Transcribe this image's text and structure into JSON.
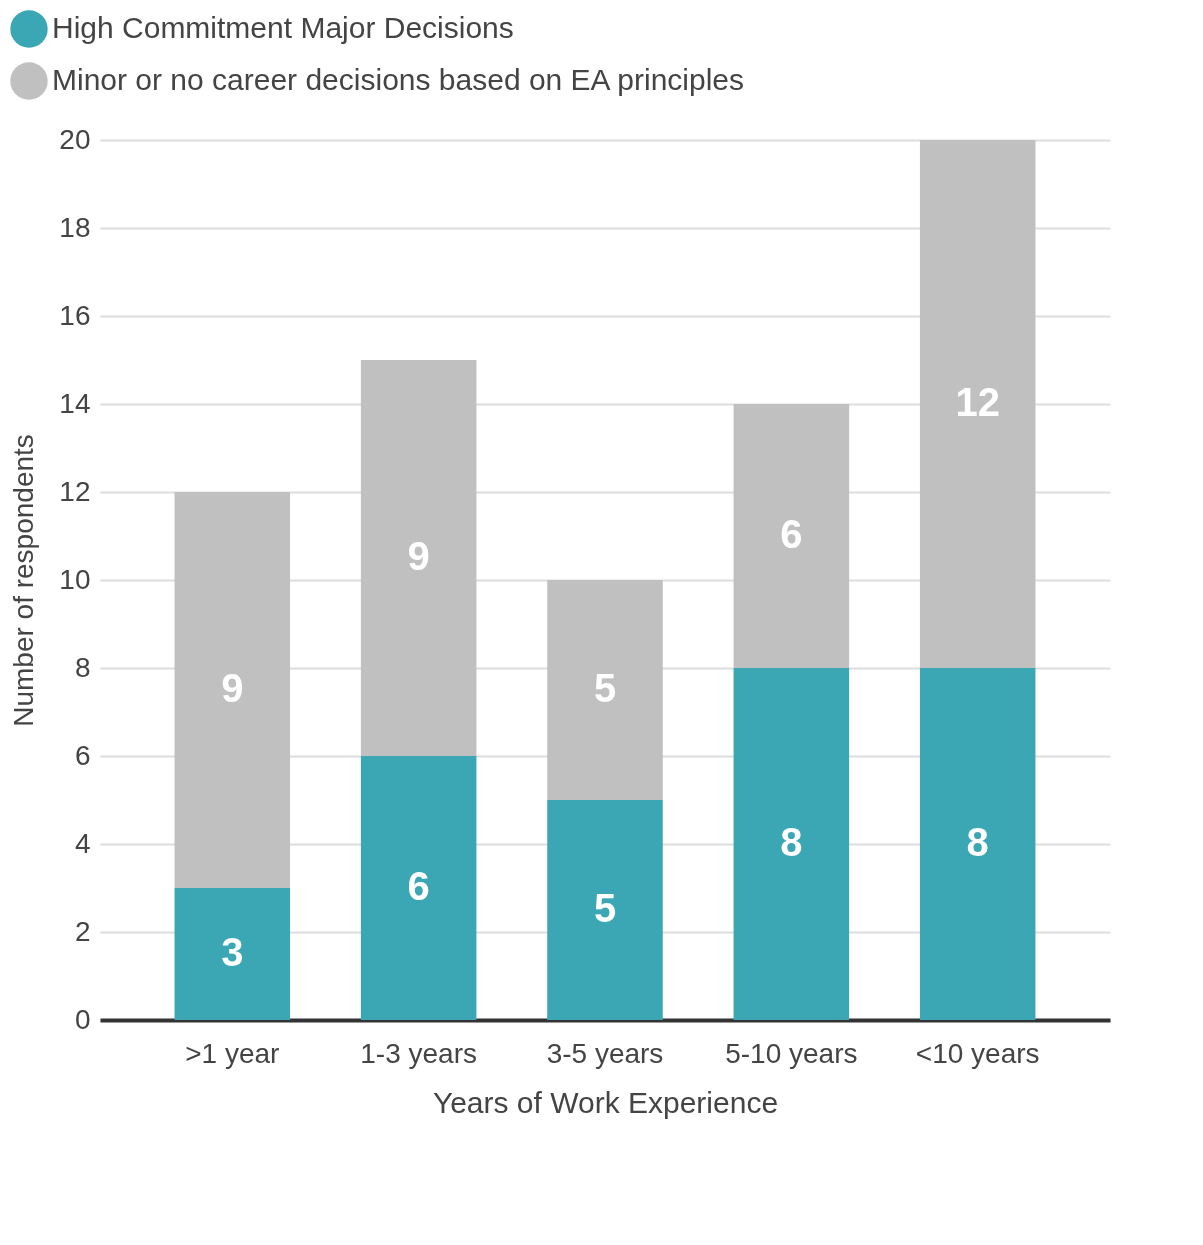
{
  "chart_data": {
    "type": "bar",
    "stacked": true,
    "xlabel": "Years of Work Experience",
    "ylabel": "Number of respondents",
    "categories": [
      ">1 year",
      "1-3 years",
      "3-5 years",
      "5-10 years",
      "<10 years"
    ],
    "series": [
      {
        "name": "High Commitment Major Decisions",
        "color": "#3ba6b4",
        "values": [
          3,
          6,
          5,
          8,
          8
        ]
      },
      {
        "name": "Minor or no career decisions based on EA principles",
        "color": "#c0c0c0",
        "values": [
          9,
          9,
          5,
          6,
          12
        ]
      }
    ],
    "ylim": [
      0,
      20
    ],
    "yticks": [
      0,
      2,
      4,
      6,
      8,
      10,
      12,
      14,
      16,
      18,
      20
    ],
    "grid": "y",
    "legend": "top left",
    "data_labels": true
  }
}
